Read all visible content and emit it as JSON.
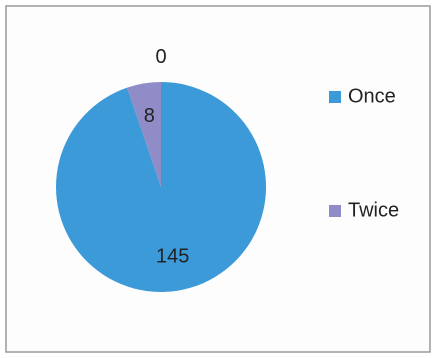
{
  "chart_data": {
    "type": "pie",
    "categories": [
      "Once",
      "Twice",
      null
    ],
    "values": [
      145,
      8,
      0
    ],
    "colors": [
      "#3d9ad9",
      "#8f8cc8"
    ],
    "legend": "right"
  }
}
